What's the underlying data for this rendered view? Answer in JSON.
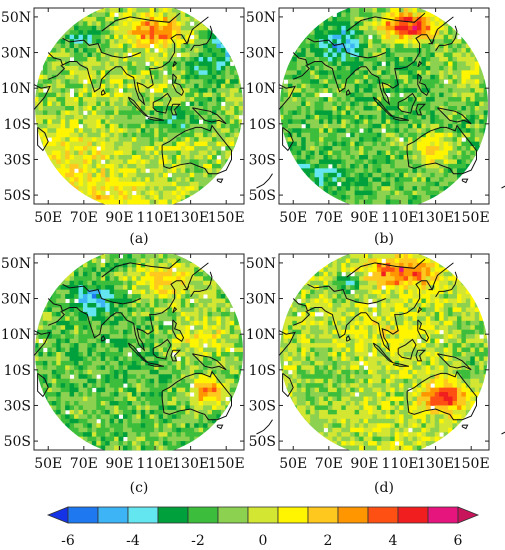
{
  "figure": {
    "panels": [
      {
        "label": "(a)",
        "pattern": "a"
      },
      {
        "label": "(b)",
        "pattern": "b"
      },
      {
        "label": "(c)",
        "pattern": "c"
      },
      {
        "label": "(d)",
        "pattern": "d"
      }
    ],
    "lat_ticks": [
      "50N",
      "30N",
      "10N",
      "10S",
      "30S",
      "50S"
    ],
    "lon_ticks": [
      "50E",
      "70E",
      "90E",
      "110E",
      "130E",
      "150E"
    ],
    "map_extent": {
      "lon_min": 42,
      "lon_max": 160,
      "lat_min": -55,
      "lat_max": 55
    }
  },
  "colorbar": {
    "tick_labels": [
      "-6",
      "-4",
      "-2",
      "0",
      "2",
      "4",
      "6"
    ],
    "range": [
      -7,
      7
    ],
    "colors": [
      "#1432e6",
      "#1e78f0",
      "#3cb4f5",
      "#64e6f0",
      "#00a03c",
      "#3cbe3c",
      "#8cd250",
      "#d2e632",
      "#fff500",
      "#ffc81e",
      "#ff9600",
      "#ff5014",
      "#f01e1e",
      "#e6147d",
      "#c8145a"
    ]
  }
}
